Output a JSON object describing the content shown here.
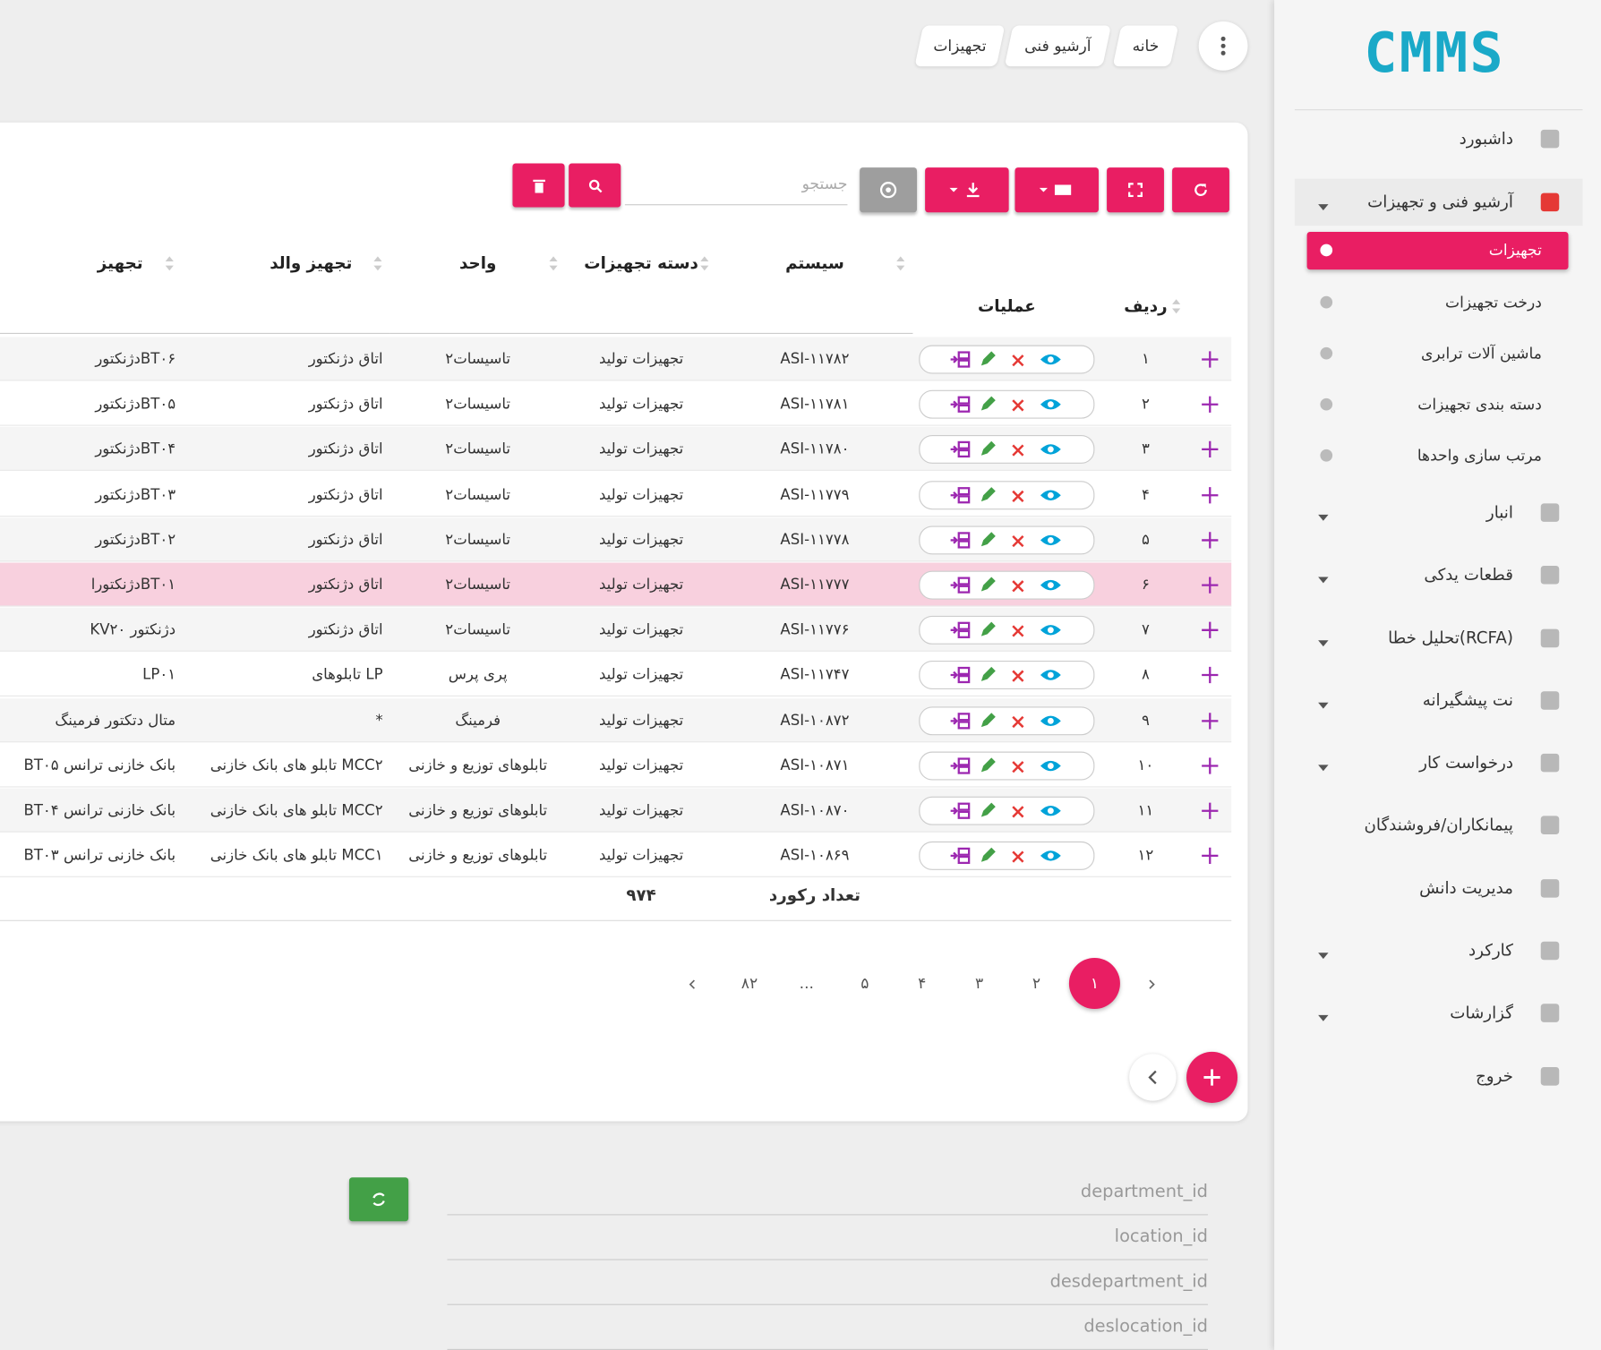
{
  "logo": "CMMS",
  "breadcrumbs": [
    "خانه",
    "آرشیو فنی",
    "تجهیزات"
  ],
  "sidebar": {
    "items": [
      {
        "label": "داشبورد",
        "expandable": false
      },
      {
        "label": "آرشیو فنی و تجهیزات",
        "expandable": true,
        "open": true,
        "children": [
          {
            "label": "تجهیزات",
            "active": true
          },
          {
            "label": "درخت تجهیزات"
          },
          {
            "label": "ماشین آلات ترابری"
          },
          {
            "label": "دسته بندی تجهیزات"
          },
          {
            "label": "مرتب سازی واحدها"
          }
        ]
      },
      {
        "label": "انبار",
        "expandable": true
      },
      {
        "label": "قطعات یدکی",
        "expandable": true
      },
      {
        "label": "تحلیل خطا(RCFA)",
        "expandable": true
      },
      {
        "label": "نت پیشگیرانه",
        "expandable": true
      },
      {
        "label": "درخواست کار",
        "expandable": true
      },
      {
        "label": "پیمانکاران/فروشندگان",
        "expandable": false
      },
      {
        "label": "مدیریت دانش",
        "expandable": false
      },
      {
        "label": "کارکرد",
        "expandable": true
      },
      {
        "label": "گزارشات",
        "expandable": true
      },
      {
        "label": "خروج",
        "expandable": false
      }
    ]
  },
  "toolbar": {
    "search_placeholder": "جستجو"
  },
  "table": {
    "headers": [
      "ردیف",
      "عملیات",
      "سیستم",
      "دسته تجهیزات",
      "واحد",
      "تجهیز والد",
      "تجهیز"
    ],
    "highlighted_row": 5,
    "rows": [
      [
        "۱",
        "ASI-۱۱۷۸۲",
        "تجهیزات تولید",
        "۲تاسیسات",
        "اتاق دژنکتور",
        "دژنکتورBT۰۶"
      ],
      [
        "۲",
        "ASI-۱۱۷۸۱",
        "تجهیزات تولید",
        "۲تاسیسات",
        "اتاق دژنکتور",
        "دژنکتورBT۰۵"
      ],
      [
        "۳",
        "ASI-۱۱۷۸۰",
        "تجهیزات تولید",
        "۲تاسیسات",
        "اتاق دژنکتور",
        "دژنکتورBT۰۴"
      ],
      [
        "۴",
        "ASI-۱۱۷۷۹",
        "تجهیزات تولید",
        "۲تاسیسات",
        "اتاق دژنکتور",
        "دژنکتورBT۰۳"
      ],
      [
        "۵",
        "ASI-۱۱۷۷۸",
        "تجهیزات تولید",
        "۲تاسیسات",
        "اتاق دژنکتور",
        "دژنکتورBT۰۲"
      ],
      [
        "۶",
        "ASI-۱۱۷۷۷",
        "تجهیزات تولید",
        "۲تاسیسات",
        "اتاق دژنکتور",
        "دژنکتوراBT۰۱"
      ],
      [
        "۷",
        "ASI-۱۱۷۷۶",
        "تجهیزات تولید",
        "۲تاسیسات",
        "اتاق دژنکتور",
        "KVدژنکتور ۲۰"
      ],
      [
        "۸",
        "ASI-۱۱۷۴۷",
        "تجهیزات تولید",
        "پری پرس",
        "تابلوهای LP",
        "LP۰۱"
      ],
      [
        "۹",
        "ASI-۱۰۸۷۲",
        "تجهیزات تولید",
        "فرمینگ",
        "*",
        "متال دتکتور فرمینگ"
      ],
      [
        "۱۰",
        "ASI-۱۰۸۷۱",
        "تجهیزات تولید",
        "تابلوهای توزیع و خازنی",
        "تابلو های بانک خازنی MCC۲",
        "BT۰۵ بانک خازنی ترانس"
      ],
      [
        "۱۱",
        "ASI-۱۰۸۷۰",
        "تجهیزات تولید",
        "تابلوهای توزیع و خازنی",
        "تابلو های بانک خازنی MCC۲",
        "BT۰۴ بانک خازنی ترانس"
      ],
      [
        "۱۲",
        "ASI-۱۰۸۶۹",
        "تجهیزات تولید",
        "تابلوهای توزیع و خازنی",
        "تابلو های بانک خازنی MCC۱",
        "BT۰۳ بانک خازنی ترانس"
      ]
    ],
    "record_count_label": "تعداد رکورد",
    "record_count": "۹۷۴"
  },
  "pagination": {
    "pages": [
      "۱",
      "۲",
      "۳",
      "۴",
      "۵",
      "...",
      "۸۲"
    ],
    "current": 0
  },
  "form": {
    "fields": [
      "department_id",
      "location_id",
      "desdepartment_id",
      "deslocation_id"
    ]
  }
}
